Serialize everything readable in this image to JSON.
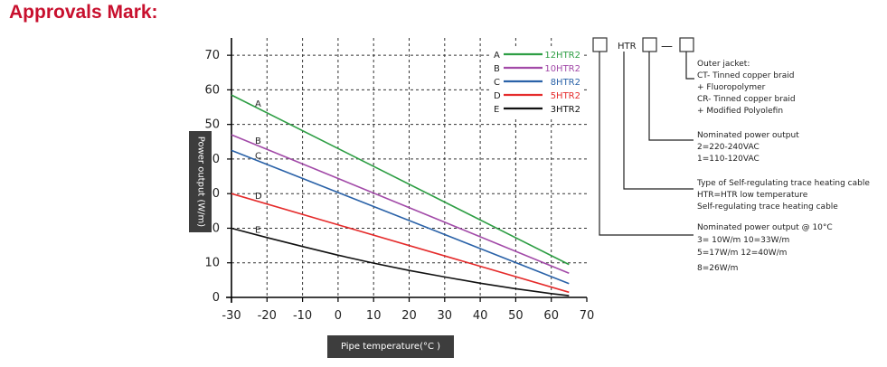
{
  "heading": "Approvals Mark:",
  "colors": {
    "heading": "#c8102e",
    "label_box": "#3d3d3d"
  },
  "chart_data": {
    "type": "line",
    "xlabel": "Pipe temperature(°C )",
    "ylabel": "Power output (W/m)",
    "xlim": [
      -30,
      70
    ],
    "ylim": [
      0,
      75
    ],
    "x_ticks": [
      "-30",
      "-20",
      "-10",
      "0",
      "10",
      "20",
      "30",
      "40",
      "50",
      "60",
      "70"
    ],
    "y_ticks": [
      "0",
      "10",
      "20",
      "30",
      "40",
      "50",
      "60",
      "70"
    ],
    "grid": true,
    "legend_position": "top-right",
    "series": [
      {
        "letter": "A",
        "name": "12HTR2",
        "color": "#2e9e44",
        "x": [
          -30,
          65
        ],
        "y": [
          58.5,
          9.5
        ]
      },
      {
        "letter": "B",
        "name": "10HTR2",
        "color": "#a24aa8",
        "x": [
          -30,
          65
        ],
        "y": [
          47,
          7
        ]
      },
      {
        "letter": "C",
        "name": "8HTR2",
        "color": "#2a62a8",
        "x": [
          -30,
          65
        ],
        "y": [
          42.5,
          4
        ]
      },
      {
        "letter": "D",
        "name": "5HTR2",
        "color": "#e52b2b",
        "x": [
          -30,
          65
        ],
        "y": [
          30,
          1.5
        ]
      },
      {
        "letter": "E",
        "name": "3HTR2",
        "color": "#111111",
        "x": [
          -30,
          -20,
          -10,
          0,
          10,
          20,
          30,
          40,
          50,
          60,
          65
        ],
        "y": [
          20,
          17.3,
          14.7,
          12.2,
          9.9,
          7.8,
          5.9,
          4.1,
          2.5,
          1.1,
          0.5
        ]
      }
    ]
  },
  "model_code": {
    "part_htr": "HTR",
    "part_dash": "—",
    "lines": [
      "Outer jacket:",
      "CT- Tinned copper braid",
      "+ Fluoropolymer",
      "CR- Tinned copper braid",
      "+ Modified Polyolefin",
      "Nominated power output",
      "2=220-240VAC",
      "1=110-120VAC",
      "Type of Self-regulating trace heating cable",
      "HTR=HTR low temperature",
      "Self-regulating trace heating cable",
      "Nominated power output @ 10°C",
      "3= 10W/m   10=33W/m",
      "5=17W/m    12=40W/m",
      "8=26W/m"
    ]
  }
}
